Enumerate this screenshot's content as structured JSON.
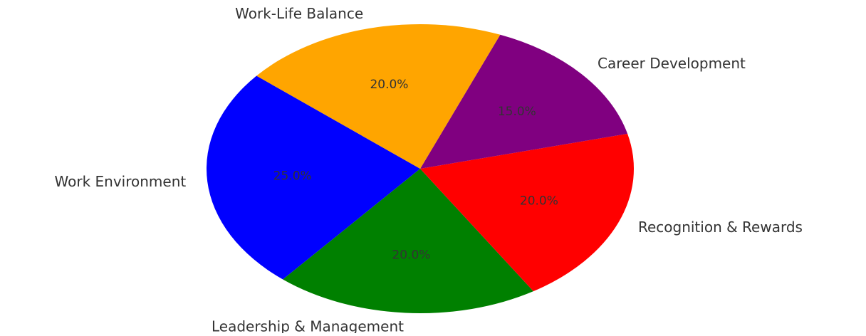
{
  "chart_data": {
    "type": "pie",
    "categories": [
      "Work Environment",
      "Leadership & Management",
      "Recognition & Rewards",
      "Career Development",
      "Work-Life Balance"
    ],
    "values": [
      25,
      20,
      20,
      15,
      20
    ],
    "value_labels": [
      "25.0%",
      "20.0%",
      "20.0%",
      "15.0%",
      "20.0%"
    ],
    "colors": [
      "#0000ff",
      "#008000",
      "#ff0000",
      "#800080",
      "#ffa500"
    ]
  }
}
